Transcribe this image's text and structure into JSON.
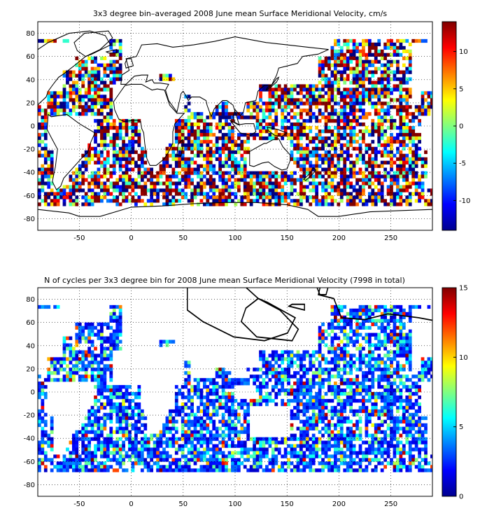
{
  "chart_data": [
    {
      "type": "heatmap",
      "title": "3x3 degree bin–averaged 2008 June mean Surface Meridional Velocity, cm/s",
      "xlim": [
        -90,
        290
      ],
      "ylim": [
        -90,
        90
      ],
      "xticks": [
        -50,
        0,
        50,
        100,
        150,
        200,
        250
      ],
      "yticks": [
        80,
        60,
        40,
        20,
        0,
        -20,
        -40,
        -60,
        -80
      ],
      "grid": true,
      "colorbar": {
        "colormap": "jet",
        "range": [
          -14,
          14
        ],
        "ticks": [
          10,
          5,
          0,
          -5,
          -10
        ]
      },
      "bin_size_deg": 3,
      "coverage": "global ocean bins between about 75N and 70S; land and unsampled bins are blank"
    },
    {
      "type": "heatmap",
      "title": "N of cycles per 3x3 degree bin for 2008 June mean Surface Meridional Velocity (7998 in total)",
      "xlim": [
        -90,
        290
      ],
      "ylim": [
        -90,
        90
      ],
      "xticks": [
        -50,
        0,
        50,
        100,
        150,
        200,
        250
      ],
      "yticks": [
        80,
        60,
        40,
        20,
        0,
        -20,
        -40,
        -60,
        -80
      ],
      "grid": true,
      "colorbar": {
        "colormap": "jet",
        "range": [
          0,
          15
        ],
        "ticks": [
          15,
          10,
          5,
          0
        ]
      },
      "bin_size_deg": 3,
      "total_cycles": 7998,
      "coverage": "same bins as upper panel; most bins hold 1-4 cycles (blue)"
    }
  ]
}
